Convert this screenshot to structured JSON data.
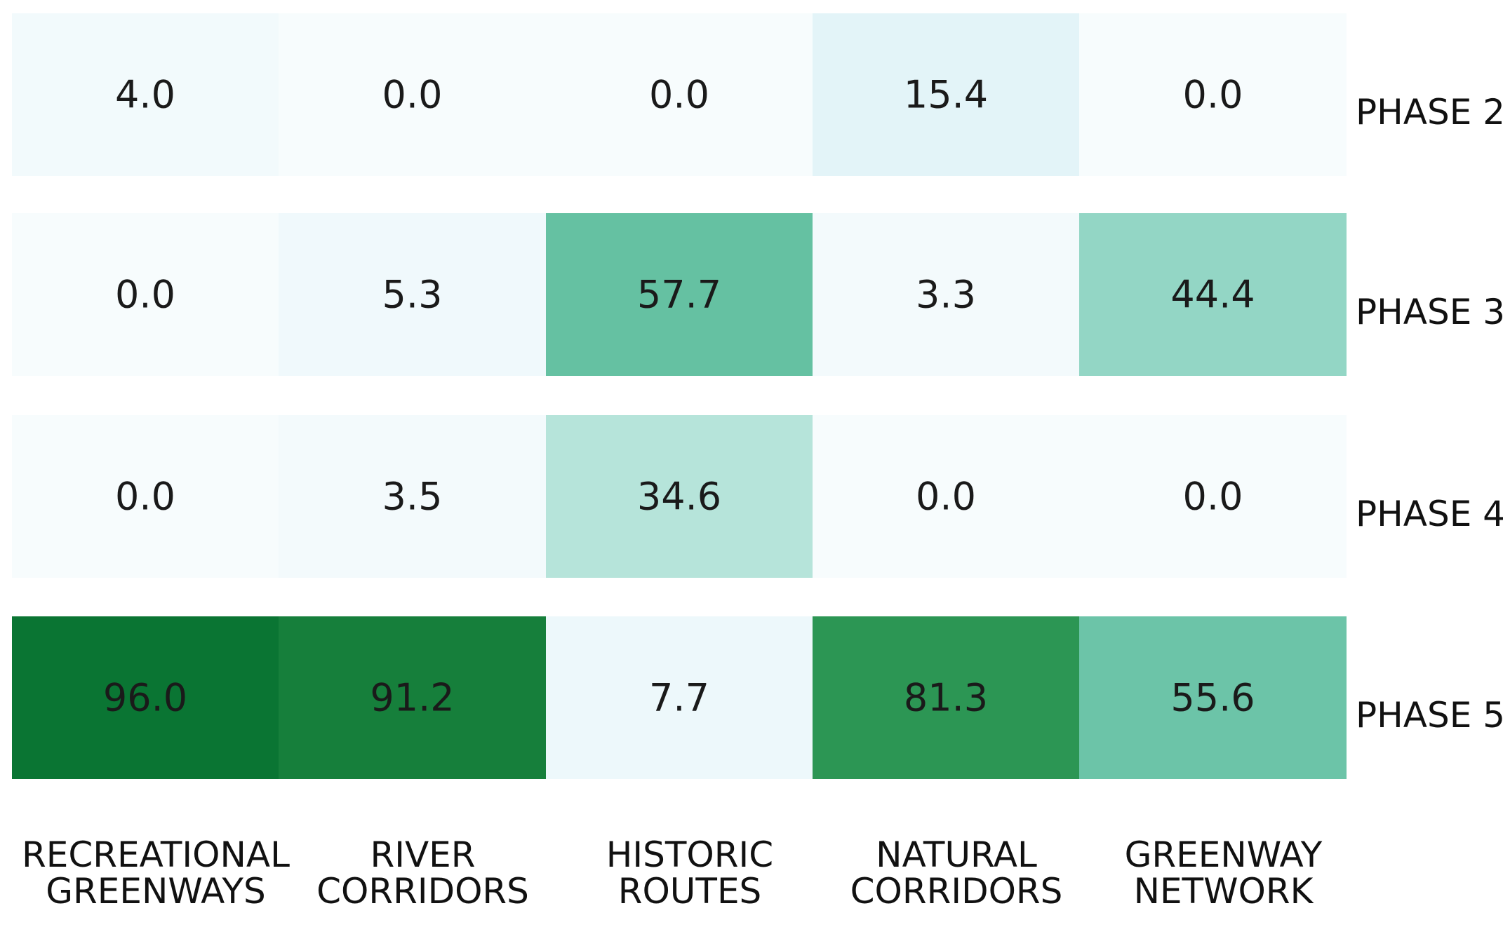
{
  "chart_data": {
    "type": "heatmap",
    "title": "",
    "xlabel": "",
    "ylabel": "",
    "columns": [
      [
        "RECREATIONAL",
        "GREENWAYS"
      ],
      [
        "RIVER",
        "CORRIDORS"
      ],
      [
        "HISTORIC",
        "ROUTES"
      ],
      [
        "NATURAL",
        "CORRIDORS"
      ],
      [
        "GREENWAY",
        "NETWORK"
      ]
    ],
    "rows": [
      "PHASE 2",
      "PHASE 3",
      "PHASE 4",
      "PHASE 5"
    ],
    "values": [
      [
        4.0,
        0.0,
        0.0,
        15.4,
        0.0
      ],
      [
        0.0,
        5.3,
        57.7,
        3.3,
        44.4
      ],
      [
        0.0,
        3.5,
        34.6,
        0.0,
        0.0
      ],
      [
        96.0,
        91.2,
        7.7,
        81.3,
        55.6
      ]
    ],
    "value_labels": [
      [
        "4.0",
        "0.0",
        "0.0",
        "15.4",
        "0.0"
      ],
      [
        "0.0",
        "5.3",
        "57.7",
        "3.3",
        "44.4"
      ],
      [
        "0.0",
        "3.5",
        "34.6",
        "0.0",
        "0.0"
      ],
      [
        "96.0",
        "91.2",
        "7.7",
        "81.3",
        "55.6"
      ]
    ],
    "color_range": [
      0,
      100
    ],
    "colormap": [
      "#f7fcfd",
      "#e5f5f9",
      "#ccece6",
      "#99d8c9",
      "#66c2a4",
      "#41ae76",
      "#238b45",
      "#006d2c"
    ],
    "legend": "none",
    "grid": false
  }
}
